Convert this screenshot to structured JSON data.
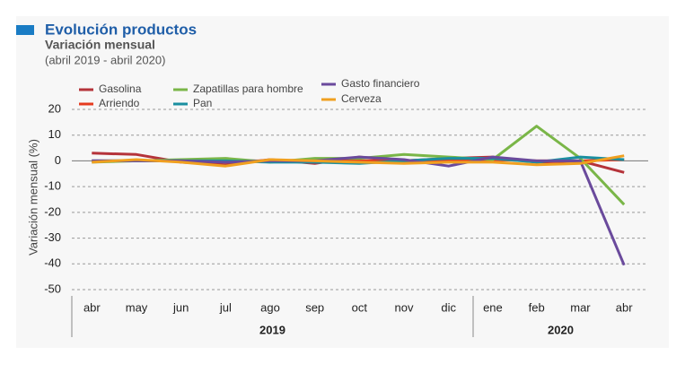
{
  "chart_data": {
    "type": "line",
    "title": "Evolución productos",
    "subtitle": "Variación mensual",
    "period": "(abril 2019 - abril 2020)",
    "y_label": "Variación mensual (%)",
    "category_groups": [
      {
        "name": "2019",
        "categories": [
          "abr",
          "may",
          "jun",
          "jul",
          "ago",
          "sep",
          "oct",
          "nov",
          "dic"
        ]
      },
      {
        "name": "2020",
        "categories": [
          "ene",
          "feb",
          "mar",
          "abr"
        ]
      }
    ],
    "ylim": [
      -50,
      20
    ],
    "yticks": [
      -50,
      -40,
      -30,
      -20,
      -10,
      0,
      10,
      20
    ],
    "grid": true,
    "series": [
      {
        "name": "Gasolina",
        "color": "#b5333a",
        "values": [
          3,
          2.5,
          -0.5,
          -1.5,
          0.5,
          -1,
          1.5,
          0,
          1,
          1.5,
          -0.5,
          0,
          -4.5
        ]
      },
      {
        "name": "Arriendo",
        "color": "#e63b1f",
        "values": [
          0,
          0,
          0,
          0,
          0,
          0,
          0,
          0,
          0,
          0.5,
          0,
          0,
          0.5
        ]
      },
      {
        "name": "Zapatillas para hombre",
        "color": "#7ab648",
        "values": [
          -0.5,
          0,
          0.5,
          1,
          -0.5,
          1,
          1,
          2.5,
          1.5,
          0.5,
          13.5,
          1,
          -17
        ]
      },
      {
        "name": "Pan",
        "color": "#1a8fa0",
        "values": [
          0,
          0,
          0,
          0,
          -0.5,
          -0.5,
          -1,
          0,
          1,
          1,
          -0.5,
          1.5,
          0.5
        ]
      },
      {
        "name": "Gasto financiero",
        "color": "#6a4a9c",
        "values": [
          0,
          0,
          0,
          -0.5,
          0,
          0,
          1.5,
          0.5,
          -2,
          1.5,
          0,
          0,
          -40.5
        ]
      },
      {
        "name": "Cerveza",
        "color": "#f0a020",
        "values": [
          -0.5,
          0.5,
          -0.5,
          -2,
          0.5,
          0,
          -0.5,
          -1,
          -0.5,
          -0.5,
          -1.5,
          -1,
          2
        ]
      }
    ]
  }
}
